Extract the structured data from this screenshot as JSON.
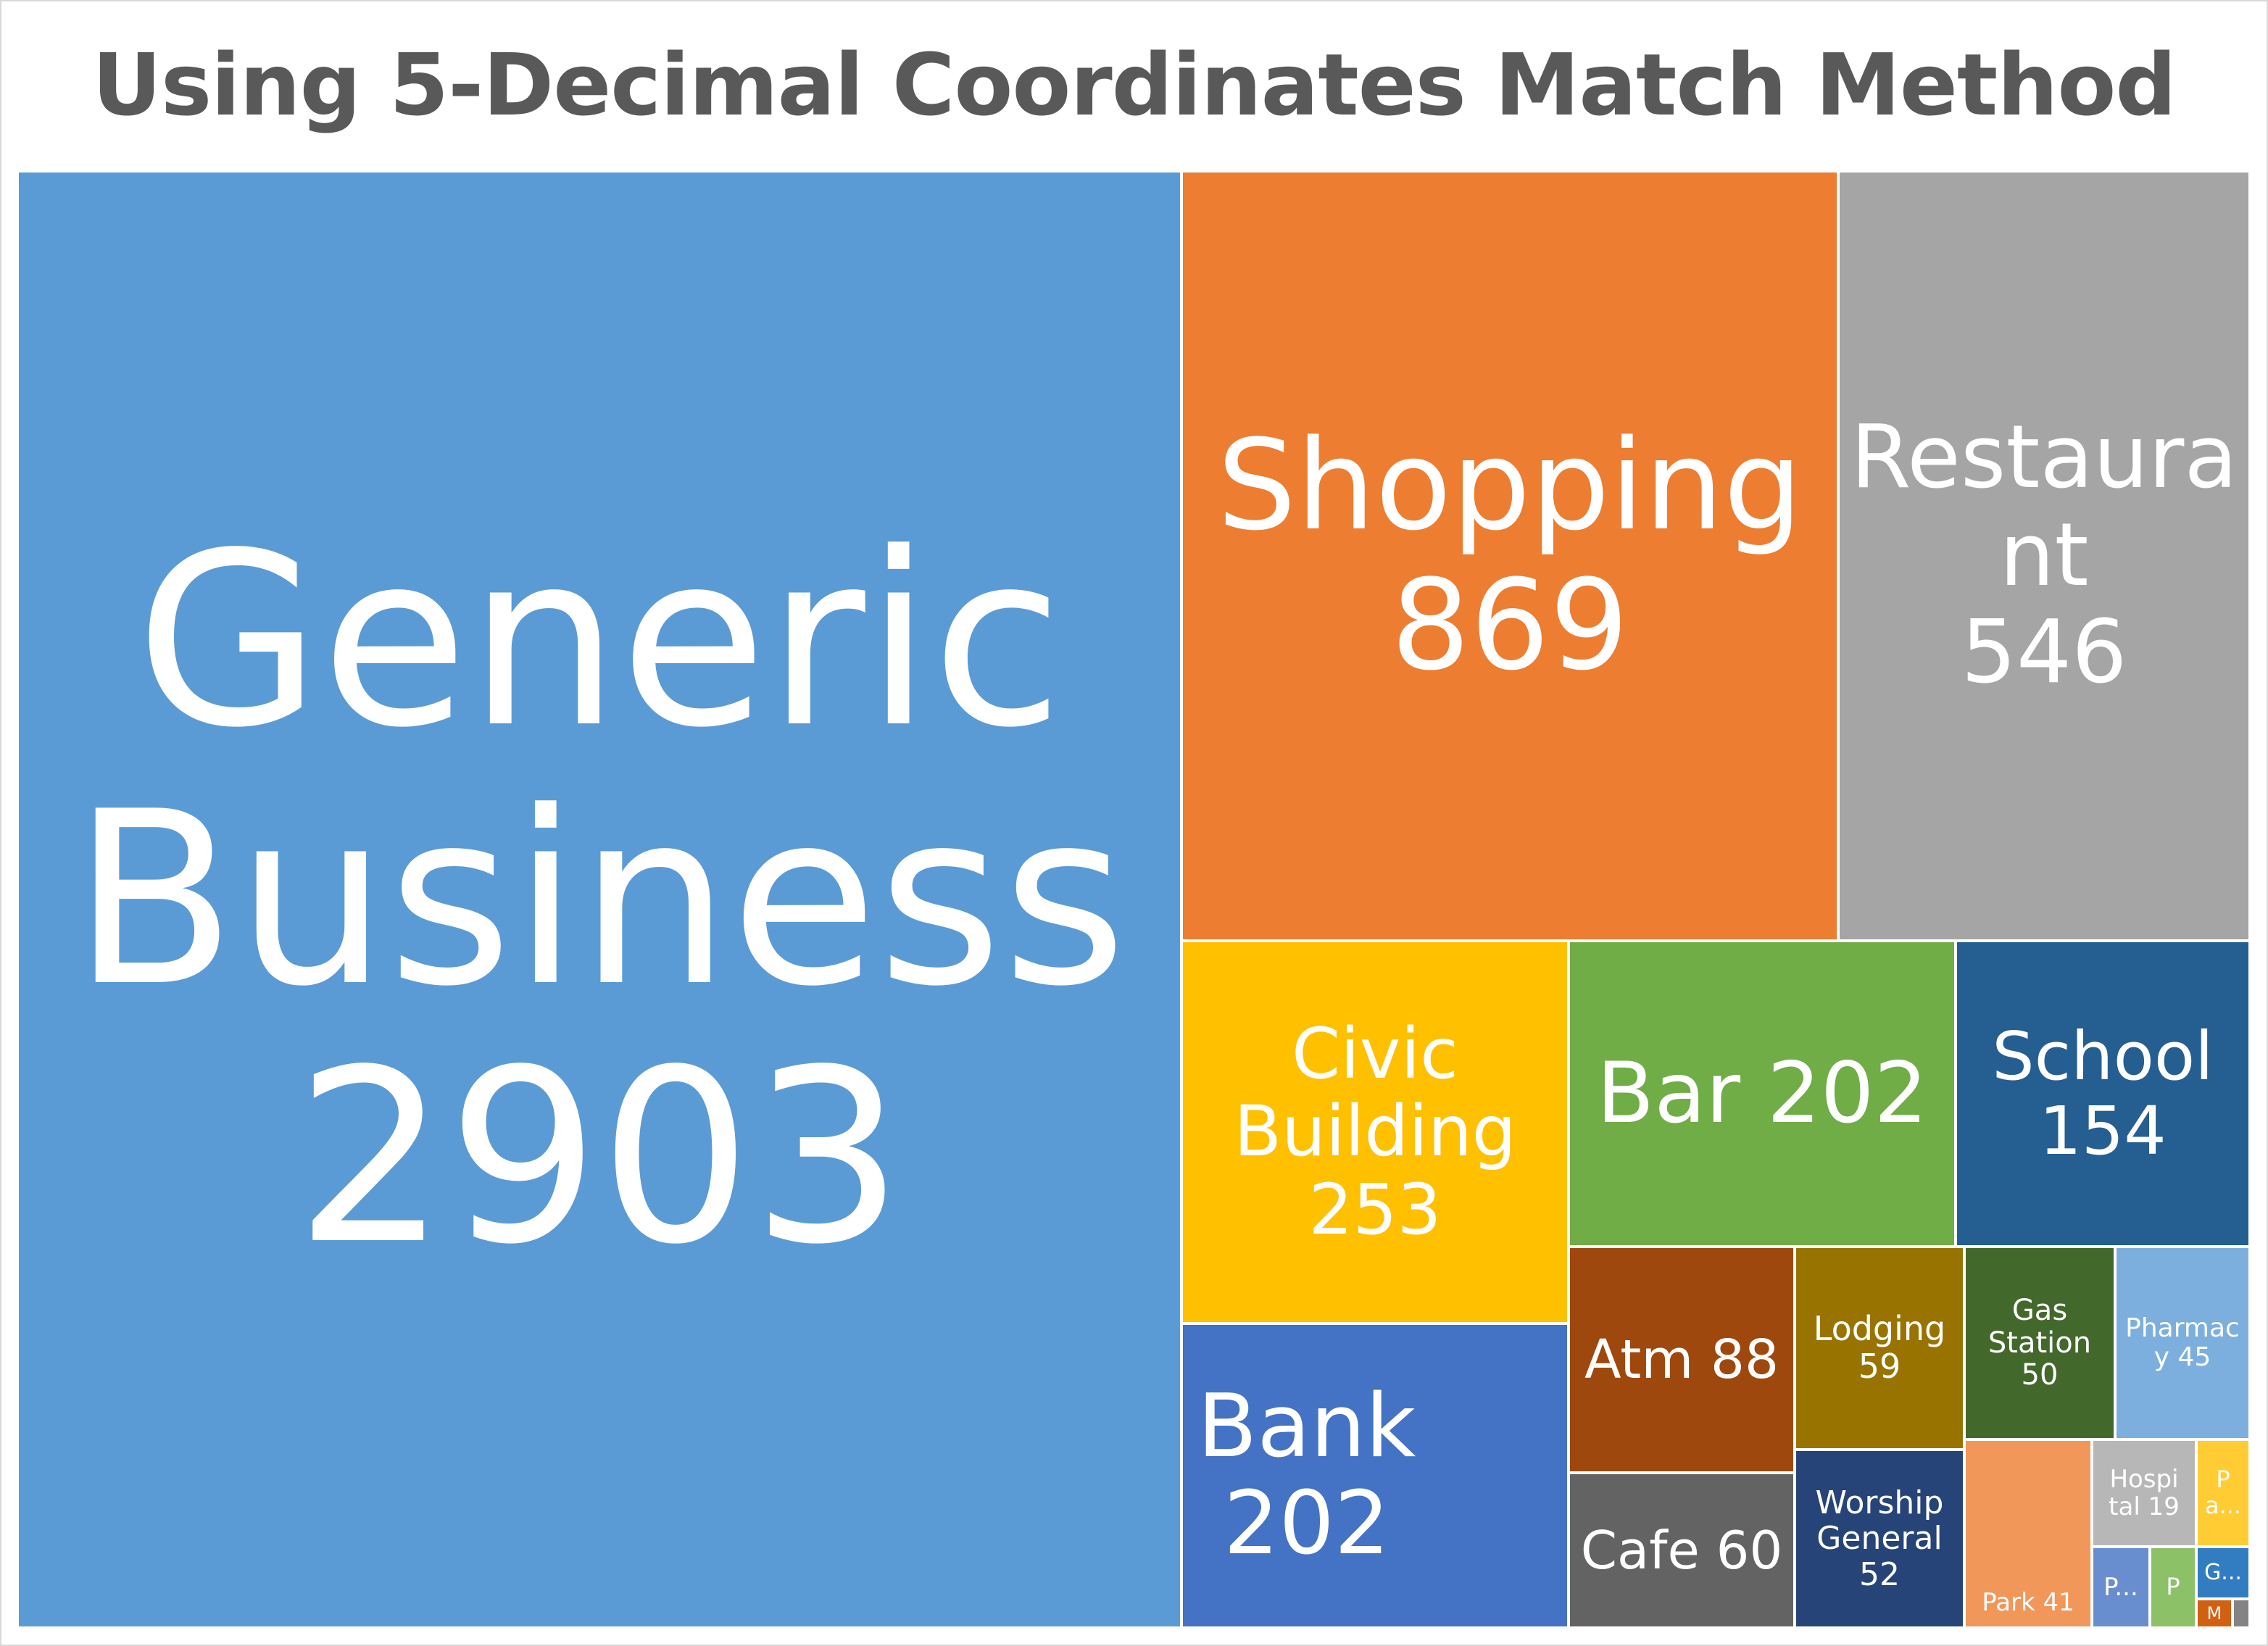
{
  "chart_data": {
    "type": "treemap",
    "title": "Using 5-Decimal Coordinates Match Method",
    "items": [
      {
        "category": "Generic Business",
        "label": "Generic\nBusiness\n2903",
        "value": 2903,
        "color": "#5B9BD5"
      },
      {
        "category": "Shopping",
        "label": "Shopping\n869",
        "value": 869,
        "color": "#ED7D31"
      },
      {
        "category": "Restaurant",
        "label": "Restaura\nnt\n546",
        "value": 546,
        "color": "#A5A5A5"
      },
      {
        "category": "Civic Building",
        "label": "Civic\nBuilding\n253",
        "value": 253,
        "color": "#FFC000"
      },
      {
        "category": "Bank",
        "label": "Bank\n202",
        "value": 202,
        "color": "#4472C4"
      },
      {
        "category": "Bar",
        "label": "Bar 202",
        "value": 202,
        "color": "#70AD47"
      },
      {
        "category": "School",
        "label": "School\n154",
        "value": 154,
        "color": "#255E91"
      },
      {
        "category": "Atm",
        "label": "Atm 88",
        "value": 88,
        "color": "#9E480E"
      },
      {
        "category": "Cafe",
        "label": "Cafe 60",
        "value": 60,
        "color": "#636363"
      },
      {
        "category": "Lodging",
        "label": "Lodging\n59",
        "value": 59,
        "color": "#997300"
      },
      {
        "category": "Worship General",
        "label": "Worship\nGeneral\n52",
        "value": 52,
        "color": "#264478"
      },
      {
        "category": "Gas Station",
        "label": "Gas\nStation\n50",
        "value": 50,
        "color": "#43682B"
      },
      {
        "category": "Pharmacy",
        "label": "Pharmac\ny 45",
        "value": 45,
        "color": "#7CAFDD"
      },
      {
        "category": "Park",
        "label": "Park 41",
        "value": 41,
        "color": "#F1975A"
      },
      {
        "category": "Hospital",
        "label": "Hospi\ntal 19",
        "value": 19,
        "color": "#B7B7B7"
      },
      {
        "category": "P (yellow)",
        "label": "P\na...",
        "value": null,
        "color": "#FFCD33"
      },
      {
        "category": "P (blue)",
        "label": "P...",
        "value": null,
        "color": "#698ED0"
      },
      {
        "category": "P (green)",
        "label": "P",
        "value": null,
        "color": "#8CC168"
      },
      {
        "category": "G",
        "label": "G...",
        "value": null,
        "color": "#327DC2"
      },
      {
        "category": "M",
        "label": "M",
        "value": null,
        "color": "#D26012"
      },
      {
        "category": "small-gray",
        "label": "",
        "value": null,
        "color": "#848484"
      }
    ]
  }
}
